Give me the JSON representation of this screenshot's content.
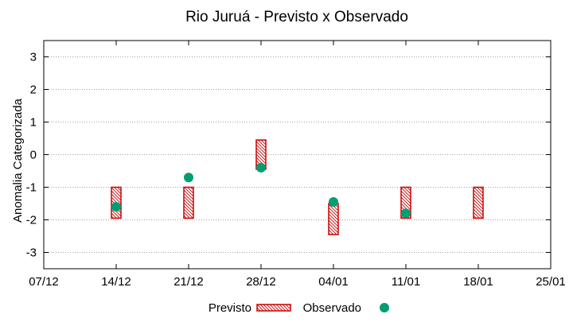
{
  "chart_data": {
    "type": "scatter",
    "title": "Rio Juruá - Previsto x Observado",
    "ylabel": "Anomalia Categorizada",
    "xlabel": "",
    "ylim": [
      -3.5,
      3.5
    ],
    "yticks": [
      3,
      2,
      1,
      0,
      -1,
      -2,
      -3
    ],
    "ytick_labels": [
      "3",
      "2",
      "1",
      "0",
      "-1",
      "-2",
      "-3"
    ],
    "xticks": [
      "07/12",
      "14/12",
      "21/12",
      "28/12",
      "04/01",
      "11/01",
      "18/01",
      "25/01"
    ],
    "grid": true,
    "legend_position": "bottom",
    "colors": {
      "forecast": "#cc0000",
      "observed": "#009e73",
      "grid": "#a0a0a0"
    },
    "series": [
      {
        "name": "Previsto",
        "kind": "range-bar",
        "points": [
          {
            "x": "14/12",
            "low": -1.95,
            "high": -1.0
          },
          {
            "x": "21/12",
            "low": -1.95,
            "high": -1.0
          },
          {
            "x": "28/12",
            "low": -0.45,
            "high": 0.45
          },
          {
            "x": "04/01",
            "low": -2.45,
            "high": -1.5
          },
          {
            "x": "11/01",
            "low": -1.95,
            "high": -1.0
          },
          {
            "x": "18/01",
            "low": -1.95,
            "high": -1.0
          }
        ]
      },
      {
        "name": "Observado",
        "kind": "point",
        "points": [
          {
            "x": "14/12",
            "y": -1.6
          },
          {
            "x": "21/12",
            "y": -0.7
          },
          {
            "x": "28/12",
            "y": -0.4
          },
          {
            "x": "04/01",
            "y": -1.45
          },
          {
            "x": "11/01",
            "y": -1.8
          }
        ]
      }
    ]
  }
}
